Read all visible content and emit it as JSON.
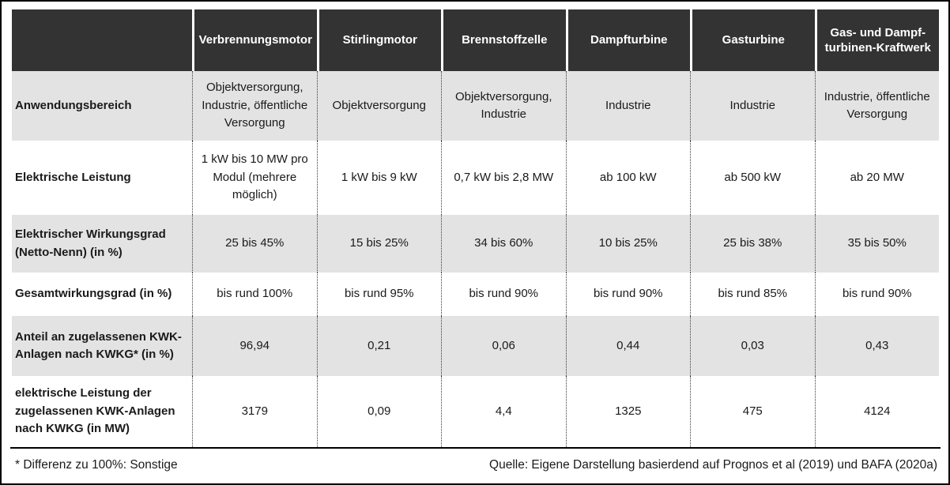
{
  "colors": {
    "header_bg": "#333333",
    "header_text": "#ffffff",
    "row_alt_bg": "#e3e3e3",
    "frame": "#000000"
  },
  "table": {
    "columns": [
      "Verbrennungsmotor",
      "Stirlingmotor",
      "Brennstoffzelle",
      "Dampfturbine",
      "Gasturbine",
      "Gas- und Dampf-\nturbinen-Kraftwerk"
    ],
    "rows": [
      {
        "label": "Anwendungsbereich",
        "cells": [
          "Objektversorgung, Industrie, öffentliche Versorgung",
          "Objektversorgung",
          "Objektversorgung, Industrie",
          "Industrie",
          "Industrie",
          "Industrie, öffentliche Versorgung"
        ]
      },
      {
        "label": "Elektrische Leistung",
        "cells": [
          "1 kW bis 10 MW pro Modul (mehrere möglich)",
          "1 kW bis 9 kW",
          "0,7 kW bis 2,8 MW",
          "ab 100 kW",
          "ab 500 kW",
          "ab 20 MW"
        ]
      },
      {
        "label": "Elektrischer Wirkungsgrad (Netto-Nenn) (in %)",
        "cells": [
          "25 bis 45%",
          "15 bis 25%",
          "34 bis 60%",
          "10 bis 25%",
          "25 bis 38%",
          "35 bis 50%"
        ]
      },
      {
        "label": "Gesamtwirkungsgrad (in %)",
        "cells": [
          "bis rund 100%",
          "bis rund 95%",
          "bis rund 90%",
          "bis rund 90%",
          "bis rund 85%",
          "bis rund 90%"
        ]
      },
      {
        "label": "Anteil an zugelassenen KWK-Anlagen nach KWKG* (in %)",
        "cells": [
          "96,94",
          "0,21",
          "0,06",
          "0,44",
          "0,03",
          "0,43"
        ]
      },
      {
        "label": "elektrische Leistung der zugelassenen KWK-Anlagen nach KWKG (in MW)",
        "cells": [
          "3179",
          "0,09",
          "4,4",
          "1325",
          "475",
          "4124"
        ]
      }
    ]
  },
  "footer": {
    "note": "* Differenz zu 100%: Sonstige",
    "source": "Quelle: Eigene Darstellung basierdend auf Prognos et al (2019) und BAFA (2020a)"
  }
}
